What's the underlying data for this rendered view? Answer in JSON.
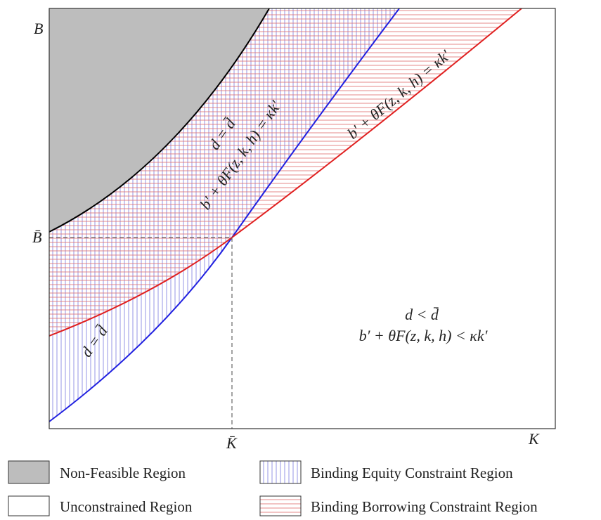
{
  "axes": {
    "y_label": "B",
    "y_mark": "B̄",
    "x_mark": "K̄",
    "x_label": "K"
  },
  "regions": {
    "equity_lower": "d = d̄",
    "both_1": "d = d̄",
    "both_2": "b′ + θF(z, k, h) = κk′",
    "borrowing": "b′ + θF(z, k, h) = κk′",
    "unconstrained_1": "d < d̄",
    "unconstrained_2": "b′ + θF(z, k, h) < κk′"
  },
  "legend": [
    "Non-Feasible Region",
    "Binding Equity Constraint Region",
    "Unconstrained Region",
    "Binding Borrowing Constraint Region"
  ]
}
